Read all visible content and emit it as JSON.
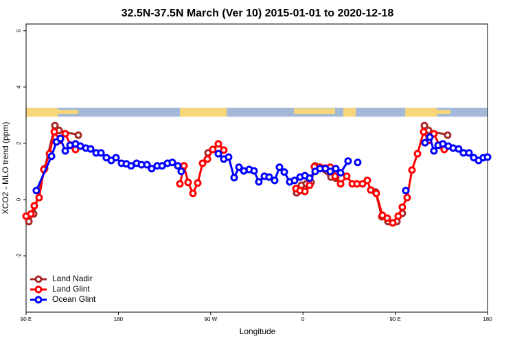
{
  "chart_data": {
    "type": "line",
    "title": "32.5N-37.5N March (Ver 10)   2015-01-01 to 2020-12-18",
    "xlabel": "Longitude",
    "ylabel": "XCO2 - MLO trend (ppm)",
    "xlim": [
      90,
      540
    ],
    "ylim": [
      -4,
      6.24
    ],
    "xticks": [
      {
        "value": 90,
        "label": "90 E"
      },
      {
        "value": 180,
        "label": "180"
      },
      {
        "value": 270,
        "label": "90 W"
      },
      {
        "value": 360,
        "label": "0"
      },
      {
        "value": 450,
        "label": "90 E"
      },
      {
        "value": 540,
        "label": "180"
      }
    ],
    "yticks": [
      -2,
      0,
      2,
      4,
      6
    ],
    "legend": "bottom-left",
    "series": [
      {
        "name": "Land Nadir",
        "color": "#a52a2a",
        "x": [
          92.7,
          97.4,
          108.1,
          118.1,
          122.1,
          140.9,
          null,
          267.4,
          null,
          353.8,
          358.5,
          363.2,
          367.9,
          371.9,
          387.3,
          392.0,
          null,
          430.8,
          436.9,
          442.9,
          451.6,
          456.9,
          null,
          478.4,
          482.4,
          501.1
        ],
        "values": [
          -0.78,
          -0.51,
          1.1,
          2.63,
          2.46,
          2.29,
          null,
          1.66,
          null,
          0.24,
          0.51,
          0.56,
          0.61,
          1.2,
          0.8,
          0.76,
          null,
          0.27,
          -0.61,
          -0.78,
          -0.78,
          -0.49,
          null,
          2.63,
          2.46,
          2.29
        ]
      },
      {
        "name": "Land Glint",
        "color": "#ff0000",
        "x": [
          90.0,
          94.7,
          98.0,
          102.7,
          107.4,
          112.8,
          117.5,
          122.8,
          128.2,
          133.5,
          138.2,
          null,
          240.0,
          244.0,
          248.0,
          252.7,
          257.4,
          262.1,
          266.8,
          272.1,
          277.5,
          282.8,
          null,
          353.2,
          357.2,
          361.9,
          366.5,
          371.2,
          376.6,
          381.9,
          386.6,
          391.3,
          396.7,
          402.7,
          408.1,
          412.7,
          418.1,
          422.8,
          426.1,
          431.5,
          437.5,
          442.2,
          447.6,
          452.9,
          456.9,
          461.6,
          466.3,
          471.7,
          477.7,
          482.4,
          487.7,
          493.1,
          497.8
        ],
        "values": [
          -0.59,
          -0.51,
          -0.22,
          0.07,
          1.07,
          1.63,
          2.41,
          2.1,
          2.34,
          1.93,
          1.78,
          null,
          0.56,
          1.2,
          0.61,
          0.22,
          0.59,
          1.29,
          1.44,
          1.78,
          1.98,
          1.76,
          null,
          0.39,
          0.32,
          0.29,
          0.51,
          1.17,
          1.15,
          1.12,
          1.15,
          0.83,
          0.56,
          0.83,
          0.56,
          0.56,
          0.56,
          0.68,
          0.34,
          0.22,
          -0.56,
          -0.66,
          -0.83,
          -0.59,
          -0.27,
          0.07,
          1.05,
          1.63,
          2.41,
          2.1,
          2.34,
          1.93,
          1.78
        ]
      },
      {
        "name": "Ocean Glint",
        "color": "#0000ff",
        "x": [
          100.0,
          114.8,
          119.6,
          123.5,
          128.2,
          132.9,
          138.2,
          142.9,
          148.3,
          152.9,
          158.3,
          163.0,
          168.3,
          173.0,
          177.7,
          183.1,
          187.8,
          192.4,
          197.8,
          202.5,
          207.9,
          212.5,
          217.9,
          222.6,
          227.9,
          232.6,
          238.0,
          241.3,
          null,
          277.5,
          282.8,
          287.5,
          292.9,
          297.6,
          302.3,
          307.6,
          312.3,
          317.0,
          322.4,
          327.0,
          332.4,
          337.1,
          341.8,
          347.1,
          351.8,
          357.2,
          361.9,
          366.5,
          371.9,
          376.6,
          381.9,
          386.6,
          392.0,
          396.7,
          404.0,
          null,
          413.4,
          null,
          460.3,
          null,
          479.0,
          483.7,
          487.7,
          491.8,
          496.4,
          501.8,
          506.5,
          511.8,
          516.5,
          521.9,
          526.6,
          531.3,
          535.9,
          540.0
        ],
        "values": [
          0.32,
          1.54,
          2.05,
          2.17,
          1.73,
          1.93,
          1.98,
          1.9,
          1.83,
          1.8,
          1.66,
          1.66,
          1.49,
          1.39,
          1.49,
          1.29,
          1.27,
          1.2,
          1.29,
          1.24,
          1.24,
          1.1,
          1.2,
          1.2,
          1.29,
          1.32,
          1.2,
          1.0,
          null,
          1.63,
          1.44,
          1.51,
          0.78,
          1.15,
          1.02,
          1.07,
          1.02,
          0.63,
          0.83,
          0.8,
          0.68,
          1.15,
          0.98,
          0.63,
          0.68,
          0.8,
          0.85,
          0.76,
          1.0,
          1.1,
          1.1,
          1.0,
          1.1,
          0.95,
          1.37,
          null,
          1.32,
          null,
          0.32,
          null,
          2.02,
          2.22,
          1.73,
          1.93,
          1.98,
          1.9,
          1.83,
          1.8,
          1.66,
          1.66,
          1.49,
          1.39,
          1.49,
          1.51
        ]
      }
    ]
  }
}
